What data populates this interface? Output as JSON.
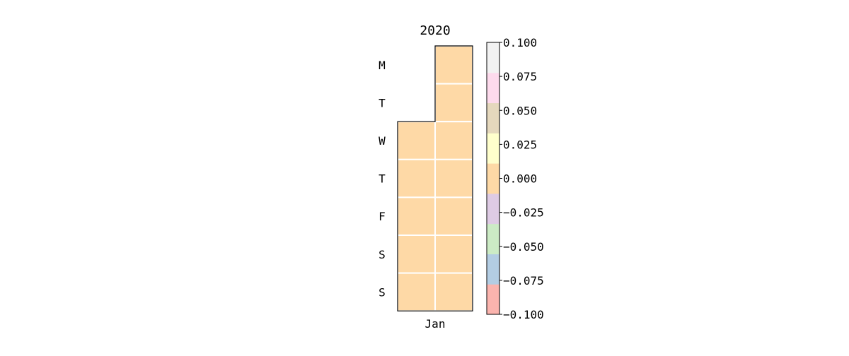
{
  "chart_data": {
    "type": "heatmap",
    "title": "2020",
    "year": 2020,
    "weekday_labels": [
      "M",
      "T",
      "W",
      "T",
      "F",
      "S",
      "S"
    ],
    "month_labels": [
      "Jan"
    ],
    "weeks": [
      [
        null,
        null,
        0,
        0,
        0,
        0,
        0
      ],
      [
        0,
        0,
        0,
        0,
        0,
        0,
        0
      ]
    ],
    "colorbar": {
      "min": -0.1,
      "max": 0.1,
      "tick_labels": [
        "0.100",
        "0.075",
        "0.050",
        "0.025",
        "0.000",
        "−0.025",
        "−0.050",
        "−0.075",
        "−0.100"
      ],
      "colors_bottom_to_top": [
        "#fbb4ae",
        "#b3cde3",
        "#ccebc5",
        "#decbe4",
        "#fed9a6",
        "#ffffcc",
        "#e5d8bd",
        "#fddaec",
        "#f2f2f2"
      ]
    },
    "cell_color": "#fed9a6",
    "grid": false
  }
}
